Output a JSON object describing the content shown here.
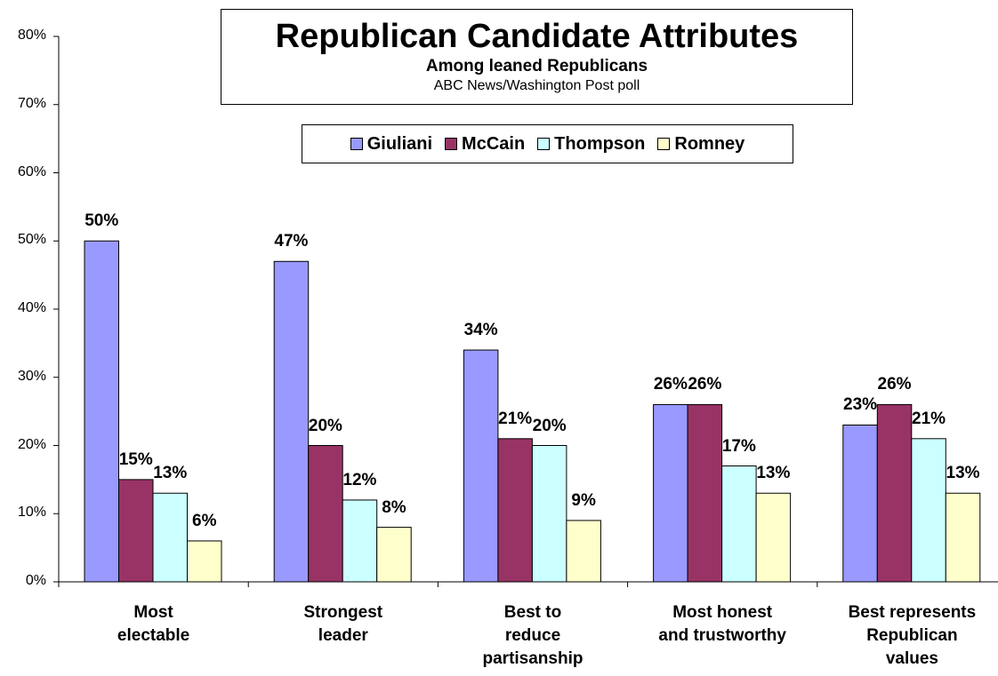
{
  "chart_data": {
    "type": "bar",
    "title": "Republican Candidate Attributes",
    "subtitle": "Among leaned Republicans",
    "source": "ABC News/Washington Post poll",
    "categories": [
      "Most\nelectable",
      "Strongest\nleader",
      "Best to\nreduce\npartisanship",
      "Most honest\nand trustworthy",
      "Best represents\nRepublican\nvalues"
    ],
    "series": [
      {
        "name": "Giuliani",
        "color": "#9999ff",
        "values": [
          50,
          47,
          34,
          26,
          23
        ]
      },
      {
        "name": "McCain",
        "color": "#993366",
        "values": [
          15,
          20,
          21,
          26,
          26
        ]
      },
      {
        "name": "Thompson",
        "color": "#ccffff",
        "values": [
          13,
          12,
          20,
          17,
          21
        ]
      },
      {
        "name": "Romney",
        "color": "#ffffcc",
        "values": [
          6,
          8,
          9,
          13,
          13
        ]
      }
    ],
    "y_ticks": [
      "0%",
      "10%",
      "20%",
      "30%",
      "40%",
      "50%",
      "60%",
      "70%",
      "80%"
    ],
    "ylim": [
      0,
      80
    ],
    "legend_position": "top",
    "grid": false
  }
}
